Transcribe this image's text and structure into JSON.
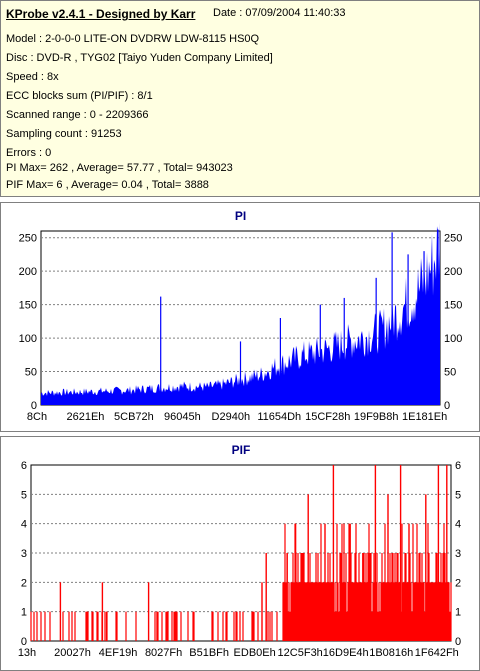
{
  "info": {
    "app_title": "KProbe v2.4.1 - Designed by Karr",
    "date": "Date : 07/09/2004 11:40:33",
    "model": "Model : 2-0-0-0 LITE-ON DVDRW LDW-8115   HS0Q",
    "disc": "Disc : DVD-R , TYG02 [Taiyo Yuden Company Limited]",
    "speed": "Speed : 8x",
    "ecc": "ECC blocks sum (PI/PIF) : 8/1",
    "scanned": "Scanned range : 0 - 2209366",
    "sampling": "Sampling count : 91253",
    "errors": "Errors : 0",
    "pi_stats": "PI Max= 262 , Average= 57.77 , Total= 943023",
    "pif_stats": "PIF Max= 6 , Average= 0.04 , Total= 3888"
  },
  "colors": {
    "bars": "#0000ff",
    "pif_bars": "#ff0000",
    "grid": "#808080",
    "title": "#000080",
    "panel_bg": "#ffffe1"
  },
  "chart_data": [
    {
      "type": "bar",
      "title": "PI",
      "ylim": [
        0,
        260
      ],
      "yticks": [
        0,
        50,
        100,
        150,
        200,
        250
      ],
      "xtick_labels": [
        "8Ch",
        "2621Eh",
        "5CB72h",
        "96045h",
        "D2940h",
        "11654Dh",
        "15CF28h",
        "19F9B8h",
        "1E181Eh"
      ],
      "grid": true,
      "baseline": [
        [
          0,
          18
        ],
        [
          0.12,
          20
        ],
        [
          0.22,
          22
        ],
        [
          0.28,
          25
        ],
        [
          0.35,
          28
        ],
        [
          0.42,
          27
        ],
        [
          0.45,
          30
        ],
        [
          0.5,
          38
        ],
        [
          0.55,
          45
        ],
        [
          0.58,
          55
        ],
        [
          0.62,
          65
        ],
        [
          0.66,
          75
        ],
        [
          0.7,
          80
        ],
        [
          0.75,
          90
        ],
        [
          0.8,
          100
        ],
        [
          0.85,
          110
        ],
        [
          0.9,
          140
        ],
        [
          0.95,
          175
        ],
        [
          0.98,
          210
        ],
        [
          1.0,
          240
        ]
      ],
      "spikes": [
        [
          0.3,
          162
        ],
        [
          0.5,
          95
        ],
        [
          0.6,
          130
        ],
        [
          0.7,
          150
        ],
        [
          0.76,
          160
        ],
        [
          0.84,
          190
        ],
        [
          0.88,
          258
        ],
        [
          0.92,
          225
        ],
        [
          0.96,
          230
        ],
        [
          0.995,
          262
        ]
      ]
    },
    {
      "type": "bar",
      "title": "PIF",
      "ylim": [
        0,
        6
      ],
      "yticks": [
        0,
        1,
        2,
        3,
        4,
        5,
        6
      ],
      "xtick_labels": [
        "13h",
        "20027h",
        "4EF19h",
        "8027Fh",
        "B51BFh",
        "EDB0Eh",
        "12C5F3h",
        "16D9E4h",
        "1B0816h",
        "1F642Fh"
      ],
      "grid": true,
      "dense_start": 0.6,
      "sparse_level": 1,
      "dense_fill": 2,
      "spikes": [
        [
          0.07,
          2
        ],
        [
          0.17,
          2
        ],
        [
          0.18,
          1
        ],
        [
          0.28,
          2
        ],
        [
          0.3,
          1
        ],
        [
          0.55,
          2
        ],
        [
          0.56,
          3
        ],
        [
          0.61,
          3
        ],
        [
          0.63,
          4
        ],
        [
          0.66,
          5
        ],
        [
          0.7,
          4
        ],
        [
          0.72,
          6
        ],
        [
          0.76,
          4
        ],
        [
          0.79,
          3
        ],
        [
          0.82,
          6
        ],
        [
          0.85,
          5
        ],
        [
          0.88,
          6
        ],
        [
          0.9,
          4
        ],
        [
          0.94,
          5
        ],
        [
          0.97,
          6
        ],
        [
          0.99,
          6
        ]
      ]
    }
  ]
}
